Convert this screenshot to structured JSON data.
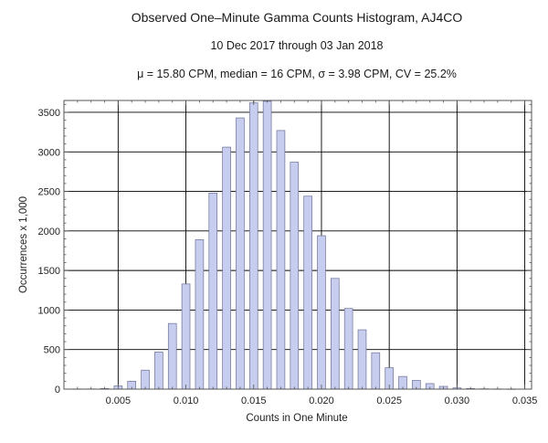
{
  "chart_data": {
    "type": "bar",
    "title": "Observed One–Minute Gamma Counts Histogram, AJ4CO",
    "subtitle": "10 Dec 2017 through 03 Jan 2018",
    "stats_line": "μ = 15.80 CPM,   median = 16 CPM,   σ = 3.98 CPM,   CV = 25.2%",
    "xlabel": "Counts in One Minute",
    "ylabel": "Occurrences x 1,000",
    "xlim": [
      0.001,
      0.0355
    ],
    "ylim": [
      0,
      3650
    ],
    "x_ticks": [
      0.005,
      0.01,
      0.015,
      0.02,
      0.025,
      0.03,
      0.035
    ],
    "x_tick_labels": [
      "0.005",
      "0.010",
      "0.015",
      "0.020",
      "0.025",
      "0.030",
      "0.035"
    ],
    "y_ticks": [
      0,
      500,
      1000,
      1500,
      2000,
      2500,
      3000,
      3500
    ],
    "y_tick_labels": [
      "0",
      "500",
      "1000",
      "1500",
      "2000",
      "2500",
      "3000",
      "3500"
    ],
    "bar_width": 0.0006,
    "x": [
      0.002,
      0.003,
      0.004,
      0.005,
      0.006,
      0.007,
      0.008,
      0.009,
      0.01,
      0.011,
      0.012,
      0.013,
      0.014,
      0.015,
      0.016,
      0.017,
      0.018,
      0.019,
      0.02,
      0.021,
      0.022,
      0.023,
      0.024,
      0.025,
      0.026,
      0.027,
      0.028,
      0.029,
      0.03,
      0.031,
      0.032,
      0.033,
      0.034
    ],
    "values": [
      2,
      3,
      8,
      40,
      100,
      240,
      470,
      830,
      1330,
      1890,
      2480,
      3060,
      3430,
      3620,
      3640,
      3270,
      2870,
      2440,
      1940,
      1400,
      1020,
      750,
      460,
      270,
      160,
      110,
      70,
      35,
      15,
      8,
      4,
      2,
      1
    ],
    "grid": true,
    "bar_fill": "#c6cdee",
    "bar_stroke": "#6e7196"
  }
}
